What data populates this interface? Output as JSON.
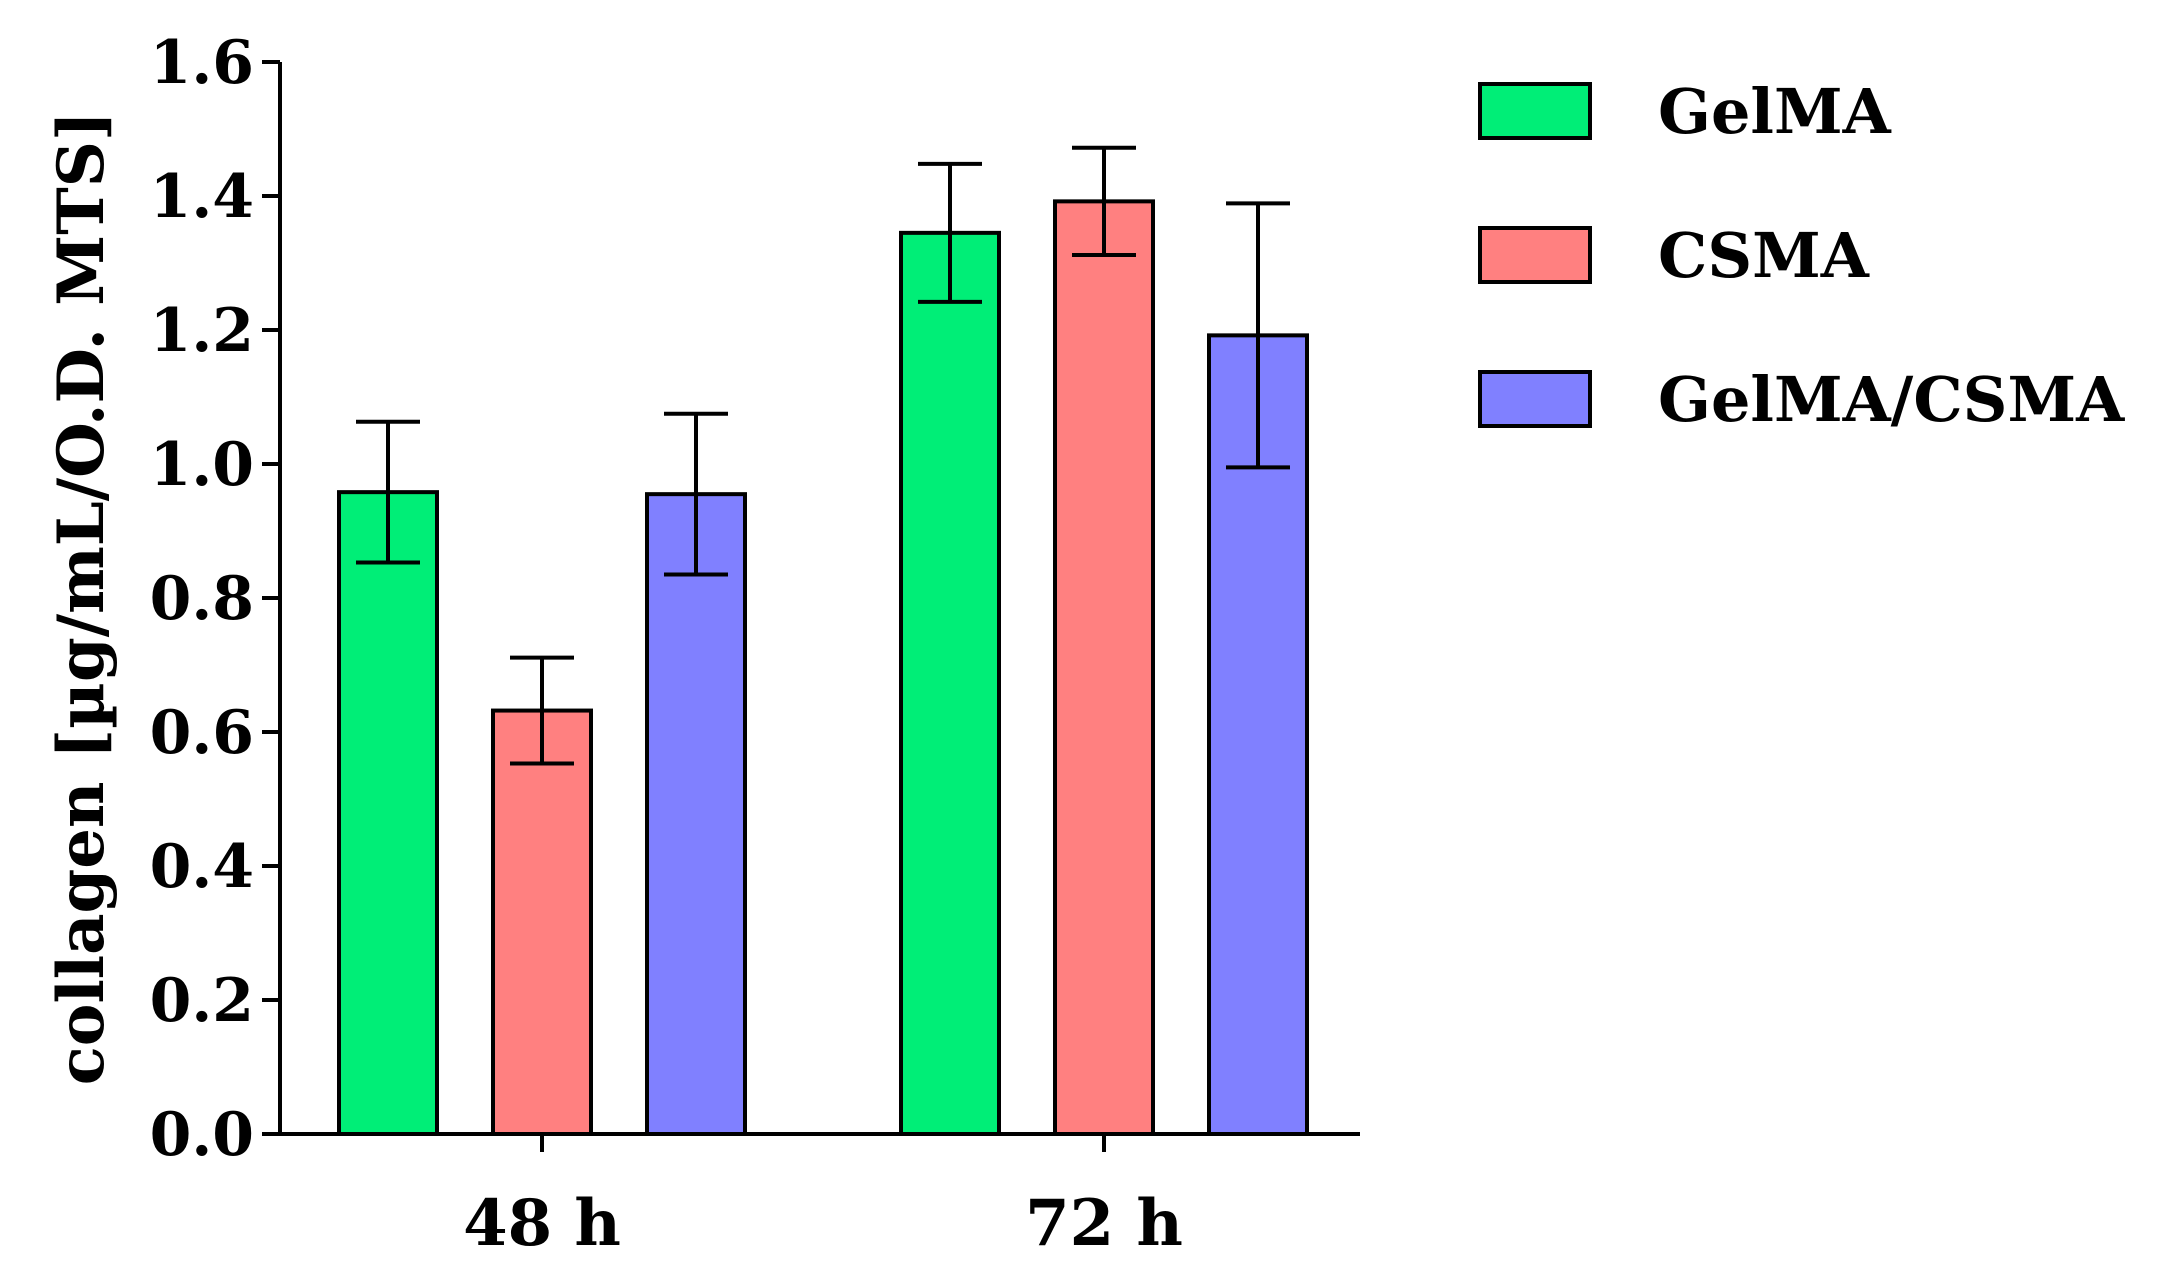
{
  "chart_data": {
    "type": "bar",
    "title": "",
    "xlabel": "",
    "ylabel": "collagen [µg/mL/O.D. MTS]",
    "categories": [
      "48 h",
      "72 h"
    ],
    "ylim": [
      0.0,
      1.6
    ],
    "yticks": [
      "0.0",
      "0.2",
      "0.4",
      "0.6",
      "0.8",
      "1.0",
      "1.2",
      "1.4",
      "1.6"
    ],
    "grid": false,
    "legend_position": "top-right",
    "series": [
      {
        "name": "GelMA",
        "color": "#00ee77",
        "values": [
          0.958,
          1.345
        ],
        "errors": [
          0.105,
          0.103
        ]
      },
      {
        "name": "CSMA",
        "color": "#ff8080",
        "values": [
          0.632,
          1.392
        ],
        "errors": [
          0.079,
          0.08
        ]
      },
      {
        "name": "GelMA/CSMA",
        "color": "#8080ff",
        "values": [
          0.955,
          1.192
        ],
        "errors": [
          0.12,
          0.197
        ]
      }
    ]
  }
}
